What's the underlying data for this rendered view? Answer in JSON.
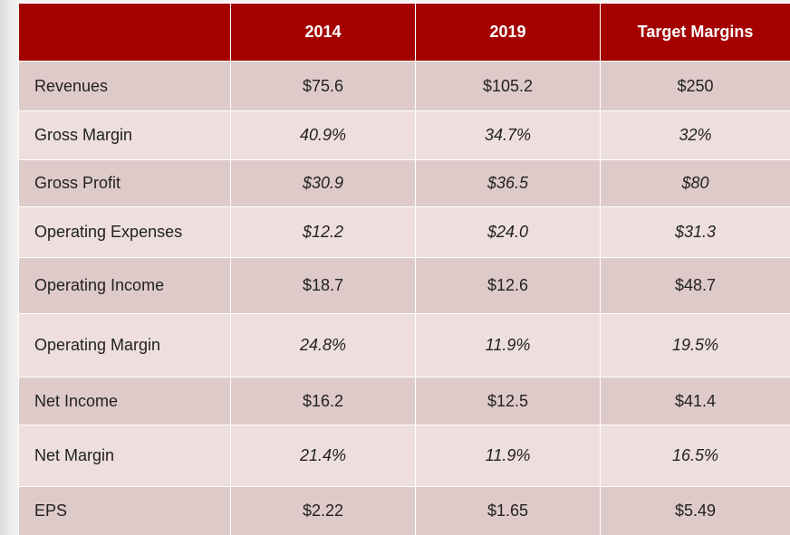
{
  "table": {
    "headers": [
      "",
      "2014",
      "2019",
      "Target Margins"
    ],
    "rows": [
      {
        "label": "Revenues",
        "values": [
          "$75.6",
          "$105.2",
          "$250"
        ],
        "italic": false
      },
      {
        "label": "Gross Margin",
        "values": [
          "40.9%",
          "34.7%",
          "32%"
        ],
        "italic": true
      },
      {
        "label": "Gross Profit",
        "values": [
          "$30.9",
          "$36.5",
          "$80"
        ],
        "italic": true
      },
      {
        "label": "Operating Expenses",
        "values": [
          "$12.2",
          "$24.0",
          "$31.3"
        ],
        "italic": true
      },
      {
        "label": "Operating Income",
        "values": [
          "$18.7",
          "$12.6",
          "$48.7"
        ],
        "italic": false
      },
      {
        "label": "Operating Margin",
        "values": [
          "24.8%",
          "11.9%",
          "19.5%"
        ],
        "italic": true
      },
      {
        "label": "Net Income",
        "values": [
          "$16.2",
          "$12.5",
          "$41.4"
        ],
        "italic": false
      },
      {
        "label": "Net Margin",
        "values": [
          "21.4%",
          "11.9%",
          "16.5%"
        ],
        "italic": true
      },
      {
        "label": "EPS",
        "values": [
          "$2.22",
          "$1.65",
          "$5.49"
        ],
        "italic": false
      }
    ]
  },
  "colors": {
    "header_bg": "#a40000",
    "row_dark": "#dfcaca",
    "row_light": "#eedede",
    "background": "#f3f3f3"
  }
}
